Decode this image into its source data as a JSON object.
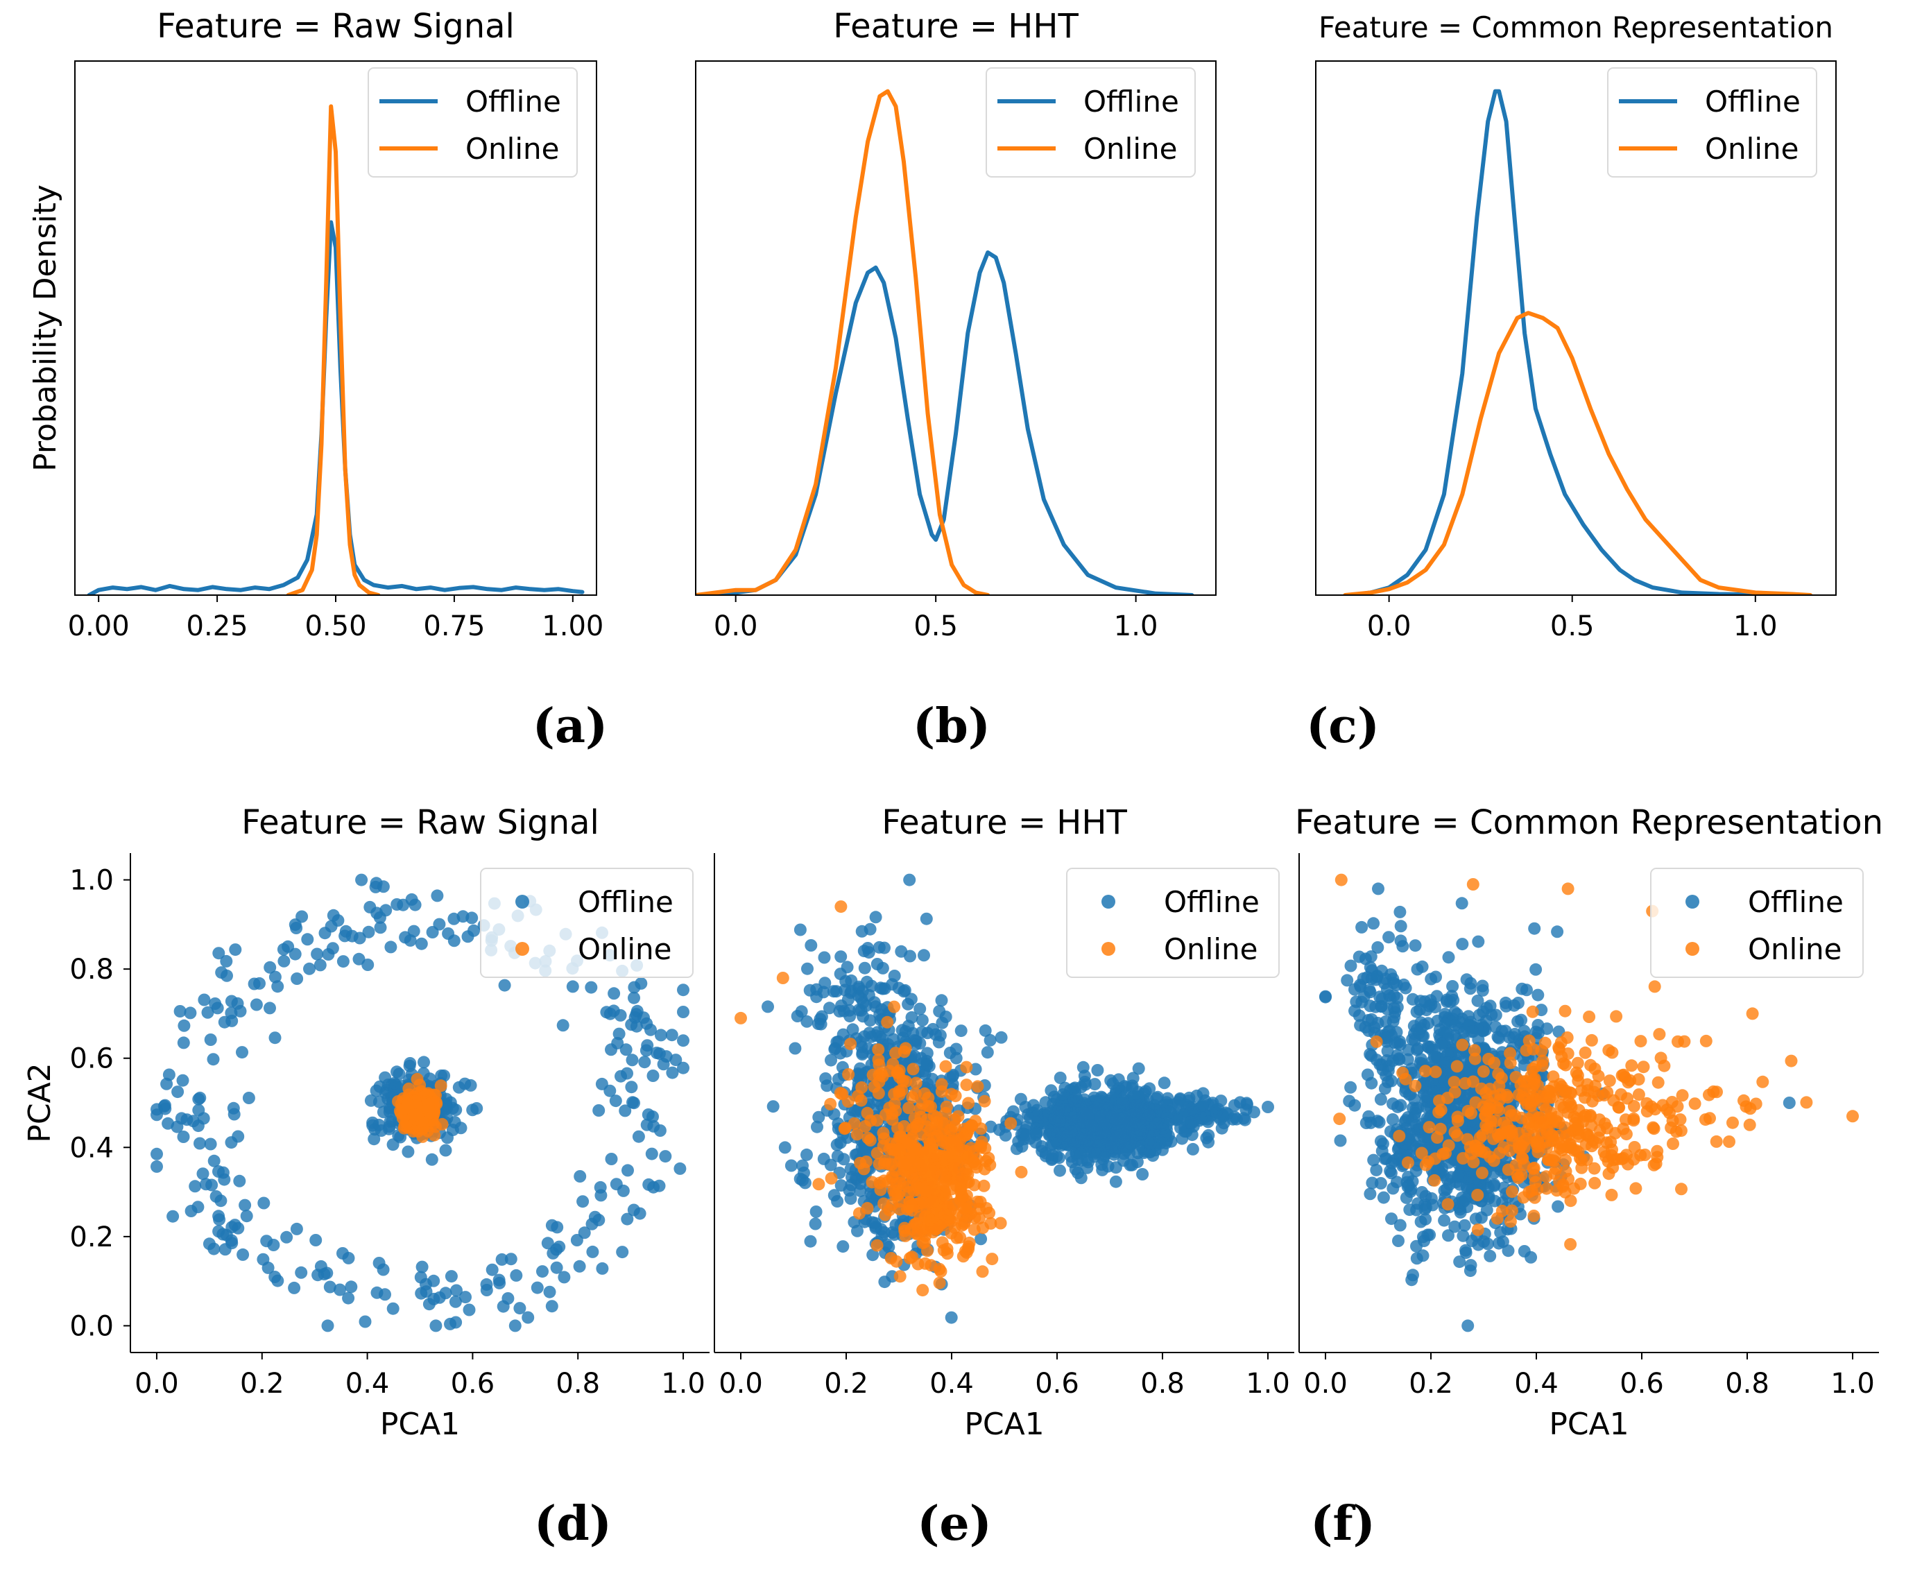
{
  "colors": {
    "offline": "#1f77b4",
    "online": "#ff7f0e"
  },
  "chart_data": [
    {
      "id": "a",
      "caption": "(a)",
      "type": "line",
      "title": "Feature = Raw Signal",
      "ylabel": "Probability Density",
      "xlabel": "",
      "xlim": [
        -0.05,
        1.05
      ],
      "ylim": [
        0,
        1.06
      ],
      "xticks": [
        0.0,
        0.25,
        0.5,
        0.75,
        1.0
      ],
      "xtick_labels": [
        "0.00",
        "0.25",
        "0.50",
        "0.75",
        "1.00"
      ],
      "legend": [
        "Offline",
        "Online"
      ],
      "series": [
        {
          "name": "Offline",
          "x": [
            -0.02,
            0.0,
            0.03,
            0.06,
            0.09,
            0.12,
            0.15,
            0.18,
            0.21,
            0.24,
            0.27,
            0.3,
            0.33,
            0.36,
            0.39,
            0.42,
            0.44,
            0.46,
            0.47,
            0.48,
            0.49,
            0.5,
            0.51,
            0.52,
            0.53,
            0.54,
            0.56,
            0.58,
            0.61,
            0.64,
            0.67,
            0.7,
            0.73,
            0.76,
            0.79,
            0.82,
            0.85,
            0.88,
            0.91,
            0.94,
            0.97,
            1.0,
            1.02
          ],
          "y": [
            0.0,
            0.01,
            0.015,
            0.012,
            0.016,
            0.01,
            0.018,
            0.012,
            0.01,
            0.016,
            0.012,
            0.01,
            0.015,
            0.012,
            0.02,
            0.035,
            0.07,
            0.16,
            0.32,
            0.55,
            0.74,
            0.69,
            0.45,
            0.25,
            0.12,
            0.06,
            0.03,
            0.02,
            0.015,
            0.018,
            0.012,
            0.015,
            0.01,
            0.014,
            0.016,
            0.012,
            0.01,
            0.015,
            0.012,
            0.01,
            0.012,
            0.008,
            0.006
          ]
        },
        {
          "name": "Online",
          "x": [
            0.4,
            0.43,
            0.45,
            0.46,
            0.47,
            0.48,
            0.49,
            0.5,
            0.51,
            0.52,
            0.53,
            0.54,
            0.55,
            0.57,
            0.59
          ],
          "y": [
            0.0,
            0.01,
            0.05,
            0.12,
            0.3,
            0.62,
            0.97,
            0.88,
            0.55,
            0.25,
            0.1,
            0.04,
            0.02,
            0.005,
            0.0
          ]
        }
      ]
    },
    {
      "id": "b",
      "caption": "(b)",
      "type": "line",
      "title": "Feature = HHT",
      "ylabel": "",
      "xlabel": "",
      "xlim": [
        -0.1,
        1.2
      ],
      "ylim": [
        0,
        1.06
      ],
      "xticks": [
        0.0,
        0.5,
        1.0
      ],
      "xtick_labels": [
        "0.0",
        "0.5",
        "1.0"
      ],
      "legend": [
        "Offline",
        "Online"
      ],
      "series": [
        {
          "name": "Offline",
          "x": [
            -0.08,
            0.0,
            0.05,
            0.1,
            0.15,
            0.2,
            0.25,
            0.3,
            0.33,
            0.35,
            0.37,
            0.4,
            0.43,
            0.46,
            0.49,
            0.5,
            0.52,
            0.55,
            0.58,
            0.61,
            0.63,
            0.65,
            0.67,
            0.7,
            0.73,
            0.77,
            0.82,
            0.88,
            0.95,
            1.05,
            1.14
          ],
          "y": [
            0.0,
            0.005,
            0.01,
            0.03,
            0.08,
            0.2,
            0.4,
            0.58,
            0.64,
            0.65,
            0.62,
            0.51,
            0.35,
            0.2,
            0.12,
            0.11,
            0.15,
            0.32,
            0.52,
            0.64,
            0.68,
            0.67,
            0.62,
            0.48,
            0.33,
            0.19,
            0.1,
            0.04,
            0.015,
            0.003,
            0.0
          ]
        },
        {
          "name": "Online",
          "x": [
            -0.1,
            -0.05,
            0.0,
            0.05,
            0.1,
            0.15,
            0.2,
            0.25,
            0.3,
            0.33,
            0.36,
            0.38,
            0.4,
            0.42,
            0.45,
            0.48,
            0.51,
            0.54,
            0.57,
            0.6,
            0.63
          ],
          "y": [
            0.0,
            0.005,
            0.01,
            0.01,
            0.03,
            0.09,
            0.22,
            0.45,
            0.75,
            0.9,
            0.99,
            1.0,
            0.97,
            0.86,
            0.63,
            0.36,
            0.16,
            0.06,
            0.02,
            0.005,
            0.0
          ]
        }
      ]
    },
    {
      "id": "c",
      "caption": "(c)",
      "type": "line",
      "title": "Feature = Common Representation",
      "ylabel": "",
      "xlabel": "",
      "xlim": [
        -0.2,
        1.22
      ],
      "ylim": [
        0,
        1.06
      ],
      "xticks": [
        0.0,
        0.5,
        1.0
      ],
      "xtick_labels": [
        "0.0",
        "0.5",
        "1.0"
      ],
      "legend": [
        "Offline",
        "Online"
      ],
      "series": [
        {
          "name": "Offline",
          "x": [
            -0.1,
            -0.05,
            0.0,
            0.05,
            0.1,
            0.15,
            0.2,
            0.24,
            0.27,
            0.29,
            0.3,
            0.32,
            0.34,
            0.37,
            0.4,
            0.44,
            0.48,
            0.53,
            0.58,
            0.63,
            0.67,
            0.72,
            0.8,
            0.9,
            1.0,
            1.1
          ],
          "y": [
            0.0,
            0.005,
            0.015,
            0.04,
            0.09,
            0.2,
            0.44,
            0.75,
            0.94,
            1.0,
            1.0,
            0.94,
            0.77,
            0.52,
            0.37,
            0.28,
            0.2,
            0.14,
            0.09,
            0.05,
            0.03,
            0.015,
            0.005,
            0.002,
            0.001,
            0.0
          ]
        },
        {
          "name": "Online",
          "x": [
            -0.12,
            -0.05,
            0.0,
            0.05,
            0.1,
            0.15,
            0.2,
            0.25,
            0.3,
            0.35,
            0.38,
            0.42,
            0.46,
            0.5,
            0.55,
            0.6,
            0.65,
            0.7,
            0.75,
            0.8,
            0.85,
            0.9,
            1.0,
            1.1,
            1.15
          ],
          "y": [
            0.0,
            0.005,
            0.012,
            0.025,
            0.05,
            0.1,
            0.2,
            0.35,
            0.48,
            0.55,
            0.56,
            0.55,
            0.53,
            0.47,
            0.37,
            0.28,
            0.21,
            0.15,
            0.11,
            0.07,
            0.03,
            0.015,
            0.005,
            0.002,
            0.0
          ]
        }
      ]
    },
    {
      "id": "d",
      "caption": "(d)",
      "type": "scatter",
      "title": "Feature = Raw Signal",
      "xlabel": "PCA1",
      "ylabel": "PCA2",
      "xlim": [
        -0.05,
        1.05
      ],
      "ylim": [
        -0.06,
        1.06
      ],
      "xticks": [
        0.0,
        0.2,
        0.4,
        0.6,
        0.8,
        1.0
      ],
      "xtick_labels": [
        "0.0",
        "0.2",
        "0.4",
        "0.6",
        "0.8",
        "1.0"
      ],
      "yticks": [
        0.0,
        0.2,
        0.4,
        0.6,
        0.8,
        1.0
      ],
      "ytick_labels": [
        "0.0",
        "0.2",
        "0.4",
        "0.6",
        "0.8",
        "1.0"
      ],
      "legend": [
        "Offline",
        "Online"
      ],
      "clusters": [
        {
          "series": "Offline",
          "shape": "ring",
          "n": 320,
          "cx": 0.5,
          "cy": 0.5,
          "r": 0.44,
          "ry": 0.43,
          "spread": 0.05,
          "seed": 11
        },
        {
          "series": "Offline",
          "shape": "gauss",
          "n": 280,
          "cx": 0.5,
          "cy": 0.49,
          "sx": 0.035,
          "sy": 0.038,
          "seed": 12
        },
        {
          "series": "Online",
          "shape": "gauss",
          "n": 230,
          "cx": 0.5,
          "cy": 0.48,
          "sx": 0.018,
          "sy": 0.022,
          "seed": 13
        }
      ]
    },
    {
      "id": "e",
      "caption": "(e)",
      "type": "scatter",
      "title": "Feature = HHT",
      "xlabel": "PCA1",
      "ylabel": "",
      "xlim": [
        -0.05,
        1.05
      ],
      "ylim": [
        -0.06,
        1.06
      ],
      "xticks": [
        0.0,
        0.2,
        0.4,
        0.6,
        0.8,
        1.0
      ],
      "xtick_labels": [
        "0.0",
        "0.2",
        "0.4",
        "0.6",
        "0.8",
        "1.0"
      ],
      "yticks": [],
      "ytick_labels": [],
      "legend": [
        "Offline",
        "Online"
      ],
      "clusters": [
        {
          "series": "Offline",
          "shape": "gauss",
          "n": 650,
          "cx": 0.3,
          "cy": 0.45,
          "sx": 0.07,
          "sy": 0.14,
          "seed": 21
        },
        {
          "series": "Offline",
          "shape": "gauss",
          "n": 70,
          "cx": 0.2,
          "cy": 0.74,
          "sx": 0.05,
          "sy": 0.07,
          "seed": 22
        },
        {
          "series": "Offline",
          "shape": "gauss",
          "n": 750,
          "cx": 0.68,
          "cy": 0.45,
          "sx": 0.07,
          "sy": 0.04,
          "seed": 23
        },
        {
          "series": "Offline",
          "shape": "gauss",
          "n": 90,
          "cx": 0.86,
          "cy": 0.47,
          "sx": 0.05,
          "sy": 0.025,
          "seed": 24
        },
        {
          "series": "Online",
          "shape": "gauss",
          "n": 430,
          "cx": 0.37,
          "cy": 0.33,
          "sx": 0.05,
          "sy": 0.09,
          "seed": 25
        },
        {
          "series": "Online",
          "shape": "gauss",
          "n": 70,
          "cx": 0.27,
          "cy": 0.52,
          "sx": 0.05,
          "sy": 0.1,
          "seed": 26
        }
      ],
      "points": [
        {
          "series": "Offline",
          "x": 0.32,
          "y": 1.0
        },
        {
          "series": "Online",
          "x": 0.0,
          "y": 0.69
        },
        {
          "series": "Online",
          "x": 0.19,
          "y": 0.94
        },
        {
          "series": "Online",
          "x": 0.08,
          "y": 0.78
        }
      ]
    },
    {
      "id": "f",
      "caption": "(f)",
      "type": "scatter",
      "title": "Feature = Common Representation",
      "xlabel": "PCA1",
      "ylabel": "",
      "xlim": [
        -0.05,
        1.05
      ],
      "ylim": [
        -0.06,
        1.06
      ],
      "xticks": [
        0.0,
        0.2,
        0.4,
        0.6,
        0.8,
        1.0
      ],
      "xtick_labels": [
        "0.0",
        "0.2",
        "0.4",
        "0.6",
        "0.8",
        "1.0"
      ],
      "yticks": [],
      "ytick_labels": [],
      "legend": [
        "Offline",
        "Online"
      ],
      "clusters": [
        {
          "series": "Offline",
          "shape": "gauss",
          "n": 1100,
          "cx": 0.27,
          "cy": 0.48,
          "sx": 0.08,
          "sy": 0.13,
          "seed": 31
        },
        {
          "series": "Offline",
          "shape": "gauss",
          "n": 80,
          "cx": 0.1,
          "cy": 0.74,
          "sx": 0.04,
          "sy": 0.08,
          "seed": 32
        },
        {
          "series": "Online",
          "shape": "gauss",
          "n": 400,
          "cx": 0.42,
          "cy": 0.46,
          "sx": 0.11,
          "sy": 0.09,
          "seed": 33
        },
        {
          "series": "Online",
          "shape": "gauss",
          "n": 30,
          "cx": 0.72,
          "cy": 0.5,
          "sx": 0.08,
          "sy": 0.08,
          "seed": 34
        }
      ],
      "points": [
        {
          "series": "Online",
          "x": 1.0,
          "y": 0.47
        },
        {
          "series": "Online",
          "x": 0.03,
          "y": 1.0
        },
        {
          "series": "Online",
          "x": 0.28,
          "y": 0.99
        },
        {
          "series": "Online",
          "x": 0.46,
          "y": 0.98
        },
        {
          "series": "Online",
          "x": 0.62,
          "y": 0.93
        },
        {
          "series": "Online",
          "x": 0.81,
          "y": 0.7
        },
        {
          "series": "Offline",
          "x": 0.88,
          "y": 0.5
        },
        {
          "series": "Offline",
          "x": 0.27,
          "y": 0.0
        },
        {
          "series": "Offline",
          "x": 0.1,
          "y": 0.98
        }
      ]
    }
  ]
}
